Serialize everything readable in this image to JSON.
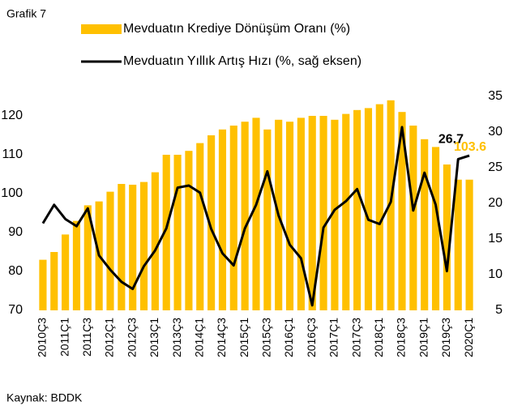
{
  "chart_data": {
    "type": "bar_line",
    "title": "Grafik 7",
    "source": "Kaynak: BDDK",
    "categories": [
      "2010Ç3",
      null,
      "2011Ç1",
      null,
      "2011Ç3",
      null,
      "2012Ç1",
      null,
      "2012Ç3",
      null,
      "2013Ç1",
      null,
      "2013Ç3",
      null,
      "2014Ç1",
      null,
      "2014Ç3",
      null,
      "2015Ç1",
      null,
      "2015Ç3",
      null,
      "2016Ç1",
      null,
      "2016Ç3",
      null,
      "2017Ç1",
      null,
      "2017Ç3",
      null,
      "2018Ç1",
      null,
      "2018Ç3",
      null,
      "2019Ç1",
      null,
      "2019Ç3",
      null,
      "2020Ç1"
    ],
    "series": [
      {
        "name": "Mevduatın Krediye Dönüşüm Oranı (%)",
        "color": "#ffc000",
        "type": "bar",
        "values": [
          83,
          85,
          89.5,
          93,
          97,
          98,
          100.5,
          102.5,
          102.3,
          103,
          105.5,
          110,
          110,
          111,
          113,
          115,
          116.5,
          117.5,
          118.5,
          119.5,
          116.5,
          119,
          118.5,
          119.5,
          120,
          120,
          119,
          120.5,
          121.5,
          122,
          123,
          124,
          121,
          117.5,
          114,
          112,
          107.5,
          103.6,
          103.6
        ]
      },
      {
        "name": "Mevduatın Yıllık Artış Hızı (%, sağ eksen)",
        "color": "#000000",
        "type": "line",
        "axis": "y2",
        "values": [
          17.2,
          19.8,
          17.8,
          16.8,
          19.3,
          12.7,
          10.7,
          9.0,
          8.0,
          11.2,
          13.4,
          16.5,
          22.2,
          22.5,
          21.5,
          16.4,
          13.0,
          11.3,
          16.5,
          19.8,
          24.5,
          18.3,
          14.2,
          12.3,
          5.7,
          16.6,
          19.1,
          20.3,
          22.0,
          17.7,
          17.1,
          20.2,
          30.7,
          19.0,
          24.3,
          19.8,
          10.5,
          26.2,
          26.7
        ]
      }
    ],
    "annotations": [
      {
        "text": "103.6",
        "color": "#ffc000"
      },
      {
        "text": "26.7",
        "color": "#000000"
      }
    ],
    "ylim": [
      70,
      125
    ],
    "yticks": [
      70,
      80,
      90,
      100,
      110,
      120
    ],
    "y2lim": [
      5,
      35
    ],
    "y2ticks": [
      5,
      10,
      15,
      20,
      25,
      30,
      35
    ]
  }
}
